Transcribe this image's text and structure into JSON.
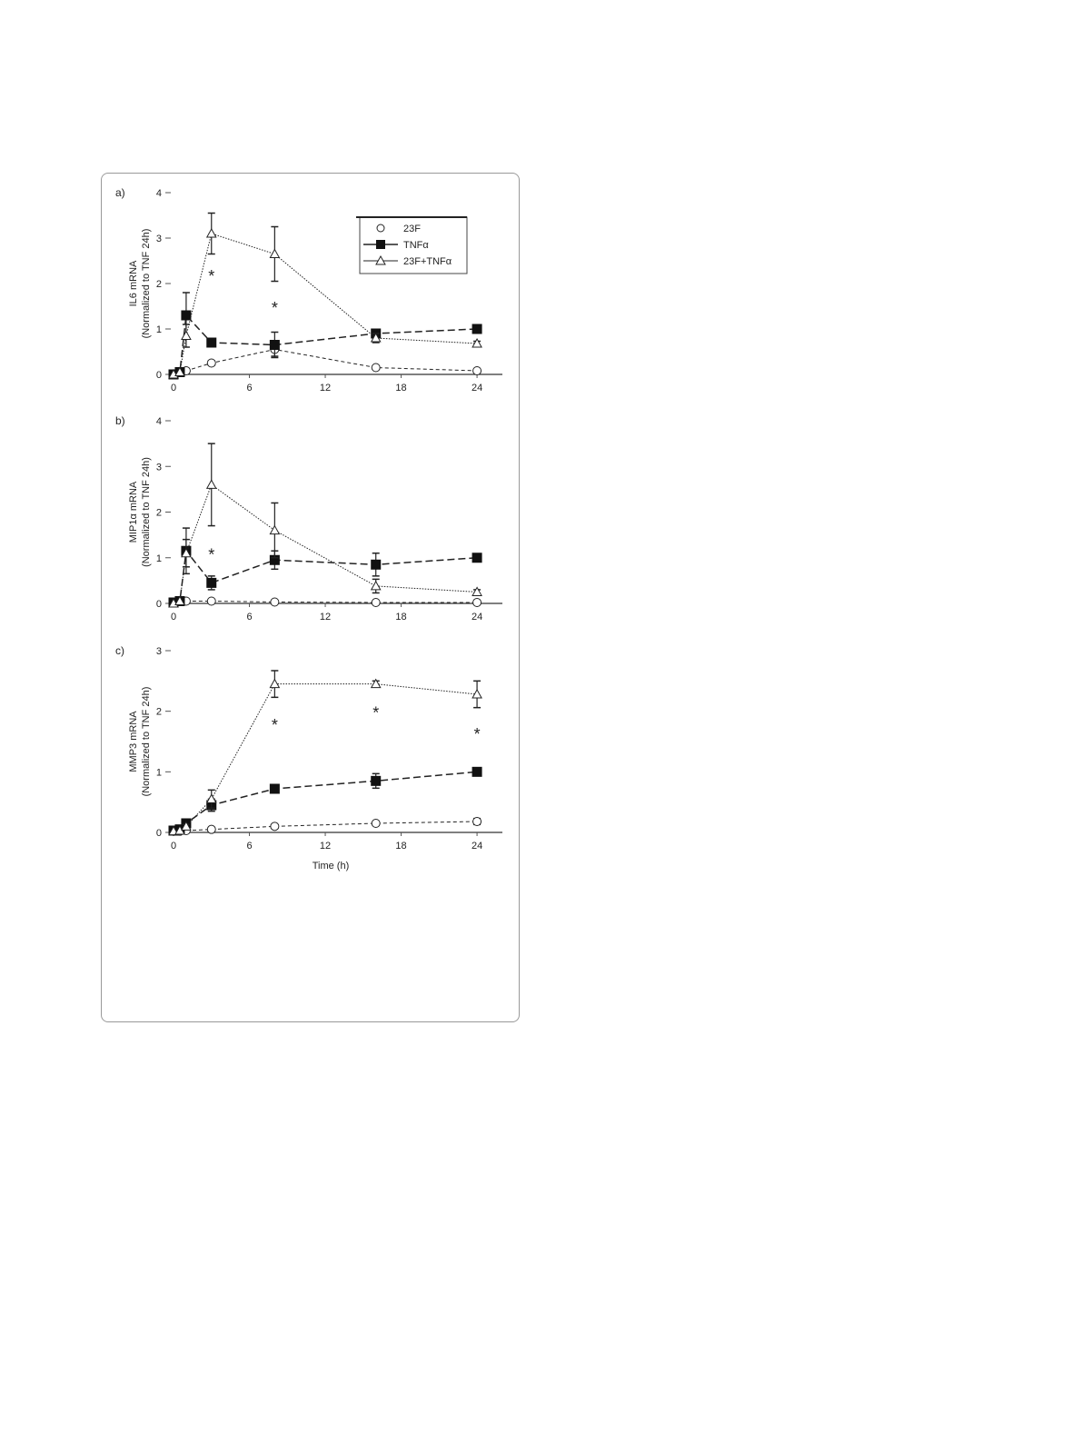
{
  "chart_data": [
    {
      "type": "line",
      "panel_label": "a)",
      "ylabel": "IL6 mRNA",
      "ylabel2": "(Normalized to TNF 24h)",
      "xlabel": "",
      "x": [
        0,
        0.5,
        1,
        3,
        8,
        16,
        24
      ],
      "xticks": [
        "0",
        "6",
        "12",
        "18",
        "24"
      ],
      "xtick_values": [
        0,
        6,
        12,
        18,
        24
      ],
      "yticks": [
        "0",
        "1",
        "2",
        "3",
        "4"
      ],
      "ylim": [
        0,
        4
      ],
      "xlim": [
        0,
        25.5
      ],
      "legend": "top-right",
      "series": [
        {
          "name": "23F",
          "marker": "open-circle",
          "values": [
            0,
            0.05,
            0.08,
            0.25,
            0.55,
            0.15,
            0.08
          ],
          "err": [
            0,
            0,
            0.05,
            0.05,
            0.15,
            0.03,
            0.03
          ]
        },
        {
          "name": "TNFα",
          "marker": "filled-square",
          "values": [
            0,
            0.05,
            1.3,
            0.7,
            0.65,
            0.9,
            1.0
          ],
          "err": [
            0,
            0,
            0.5,
            0.05,
            0.28,
            0.05,
            0
          ]
        },
        {
          "name": "23F+TNFα",
          "marker": "open-triangle",
          "values": [
            0,
            0.05,
            0.85,
            3.1,
            2.65,
            0.8,
            0.68
          ],
          "err": [
            0,
            0,
            0.25,
            0.45,
            0.6,
            0.1,
            0.05
          ]
        }
      ],
      "annotations": [
        {
          "text": "*",
          "x": 3,
          "y": 2.2
        },
        {
          "text": "*",
          "x": 8,
          "y": 1.5
        }
      ]
    },
    {
      "type": "line",
      "panel_label": "b)",
      "ylabel": "MIP1α mRNA",
      "ylabel2": "(Normalized to TNF 24h)",
      "xlabel": "",
      "x": [
        0,
        0.5,
        1,
        3,
        8,
        16,
        24
      ],
      "xticks": [
        "0",
        "6",
        "12",
        "18",
        "24"
      ],
      "xtick_values": [
        0,
        6,
        12,
        18,
        24
      ],
      "yticks": [
        "0",
        "1",
        "2",
        "3",
        "4"
      ],
      "ylim": [
        0,
        4
      ],
      "xlim": [
        0,
        25.5
      ],
      "series": [
        {
          "name": "23F",
          "marker": "open-circle",
          "values": [
            0.02,
            0.05,
            0.05,
            0.05,
            0.03,
            0.02,
            0.02
          ],
          "err": [
            0,
            0,
            0,
            0,
            0,
            0,
            0.05
          ]
        },
        {
          "name": "TNFα",
          "marker": "filled-square",
          "values": [
            0.02,
            0.05,
            1.15,
            0.45,
            0.95,
            0.85,
            1.0
          ],
          "err": [
            0,
            0,
            0.5,
            0.15,
            0.2,
            0.25,
            0
          ]
        },
        {
          "name": "23F+TNFα",
          "marker": "open-triangle",
          "values": [
            0,
            0.05,
            1.1,
            2.6,
            1.6,
            0.38,
            0.25
          ],
          "err": [
            0,
            0,
            0.3,
            0.9,
            0.6,
            0.15,
            0.05
          ]
        }
      ],
      "annotations": [
        {
          "text": "*",
          "x": 3,
          "y": 1.1
        }
      ]
    },
    {
      "type": "line",
      "panel_label": "c)",
      "ylabel": "MMP3 mRNA",
      "ylabel2": "(Normalized to TNF 24h)",
      "xlabel": "Time (h)",
      "x": [
        0,
        0.5,
        1,
        3,
        8,
        16,
        24
      ],
      "xticks": [
        "0",
        "6",
        "12",
        "18",
        "24"
      ],
      "xtick_values": [
        0,
        6,
        12,
        18,
        24
      ],
      "yticks": [
        "0",
        "1",
        "2",
        "3"
      ],
      "ylim": [
        0,
        3
      ],
      "xlim": [
        0,
        25.5
      ],
      "series": [
        {
          "name": "23F",
          "marker": "open-circle",
          "values": [
            0.02,
            0.02,
            0.03,
            0.05,
            0.1,
            0.15,
            0.18
          ],
          "err": [
            0,
            0,
            0,
            0,
            0.02,
            0.03,
            0.05
          ]
        },
        {
          "name": "TNFα",
          "marker": "filled-square",
          "values": [
            0.03,
            0.05,
            0.15,
            0.45,
            0.72,
            0.85,
            1.0
          ],
          "err": [
            0,
            0,
            0.03,
            0.1,
            0.05,
            0.12,
            0
          ]
        },
        {
          "name": "23F+TNFα",
          "marker": "open-triangle",
          "values": [
            0.02,
            0.03,
            0.1,
            0.55,
            2.45,
            2.45,
            2.28
          ],
          "err": [
            0,
            0,
            0.03,
            0.15,
            0.22,
            0.05,
            0.22
          ]
        }
      ],
      "annotations": [
        {
          "text": "*",
          "x": 8,
          "y": 1.8
        },
        {
          "text": "*",
          "x": 16,
          "y": 2.0
        },
        {
          "text": "*",
          "x": 24,
          "y": 1.65
        }
      ]
    }
  ]
}
